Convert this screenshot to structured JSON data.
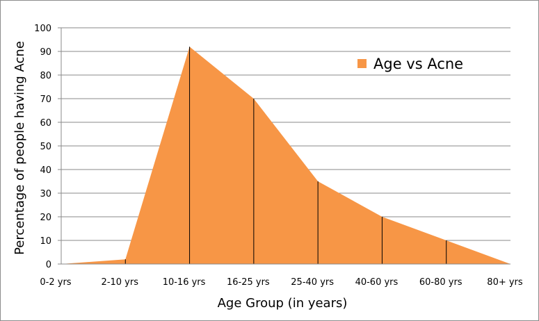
{
  "chart_data": {
    "type": "area",
    "categories": [
      "0-2 yrs",
      "2-10 yrs",
      "10-16 yrs",
      "16-25 yrs",
      "25-40 yrs",
      "40-60 yrs",
      "60-80 yrs",
      "80+ yrs"
    ],
    "series": [
      {
        "name": "Age vs Acne",
        "values": [
          0,
          2,
          92,
          70,
          35,
          20,
          10,
          0
        ],
        "color": "#F79646"
      }
    ],
    "title": "",
    "xlabel": "Age Group (in years)",
    "ylabel": "Percentage of people having Acne",
    "ylim": [
      0,
      100
    ],
    "yticks": [
      "0",
      "10",
      "20",
      "30",
      "40",
      "50",
      "60",
      "70",
      "80",
      "90",
      "100"
    ],
    "grid": true,
    "legend_position": "top-right",
    "drop_lines": true
  }
}
